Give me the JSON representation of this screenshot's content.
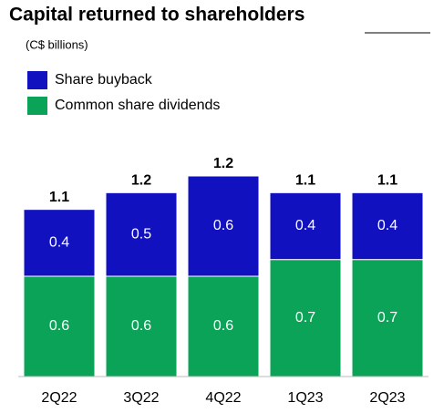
{
  "chart_data": {
    "type": "stacked-bar",
    "title": "Capital returned to shareholders",
    "subtitle": "(C$ billions)",
    "categories": [
      "2Q22",
      "3Q22",
      "4Q22",
      "1Q23",
      "2Q23"
    ],
    "series": [
      {
        "name": "Common share dividends",
        "color": "#0aa357",
        "values": [
          0.6,
          0.6,
          0.6,
          0.7,
          0.7
        ]
      },
      {
        "name": "Share buyback",
        "color": "#1111bf",
        "values": [
          0.4,
          0.5,
          0.6,
          0.4,
          0.4
        ]
      }
    ],
    "totals": [
      1.1,
      1.2,
      1.2,
      1.1,
      1.1
    ]
  }
}
